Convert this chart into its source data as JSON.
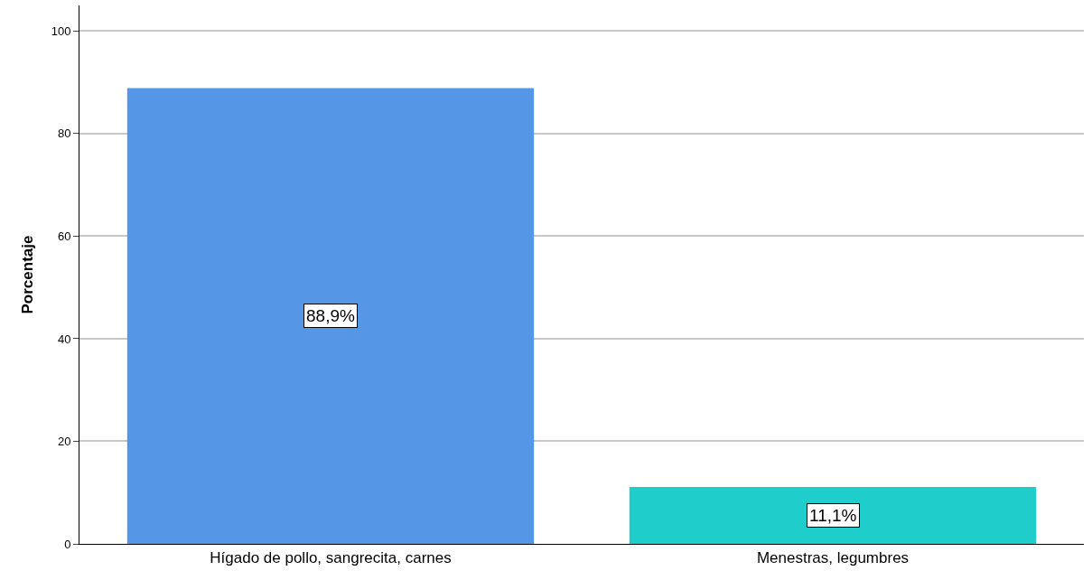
{
  "chart_data": {
    "type": "bar",
    "ylabel": "Porcentaje",
    "categories": [
      "Hígado de pollo, sangrecita, carnes",
      "Menestras, legumbres"
    ],
    "values": [
      88.9,
      11.1
    ],
    "colors": [
      "#5596e6",
      "#1fcecb"
    ],
    "value_labels": [
      "88,9%",
      "11,1%"
    ],
    "ylim": [
      0,
      105
    ],
    "yticks": [
      0,
      20,
      40,
      60,
      80,
      100
    ],
    "grid": "y",
    "legend": false
  }
}
